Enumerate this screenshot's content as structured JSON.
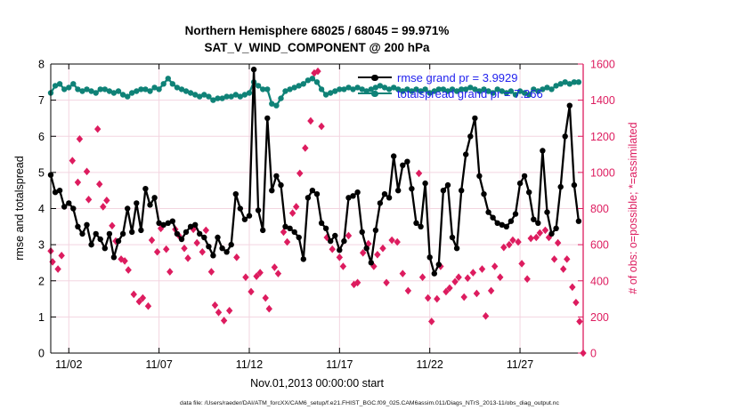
{
  "figure": {
    "title_line1": "Northern Hemisphere 68025 / 68045 = 99.971%",
    "title_line2": "SAT_V_WIND_COMPONENT @ 200 hPa",
    "footer": "data file: /Users/raeder/DAI/ATM_forcXX/CAM6_setup/f.e21.FHIST_BGC.f09_025.CAM6assim.011/Diags_NTrS_2013-11/obs_diag_output.nc"
  },
  "colors": {
    "rmse": "#000000",
    "totalspread": "#0f8277",
    "obs": "#dd1c5f",
    "legend_text": "#2222ee",
    "grid": "#f3d5e0"
  },
  "legend": {
    "items": [
      {
        "label": "rmse grand pr = 3.9929",
        "color": "#000000"
      },
      {
        "label": "totalspread grand pr = 7.266",
        "color": "#0f8277"
      }
    ]
  },
  "chart_data": {
    "type": "line",
    "title": "Northern Hemisphere 68025 / 68045 = 99.971%  |  SAT_V_WIND_COMPONENT @ 200 hPa",
    "grid": true,
    "x_axis": {
      "label": "Nov.01,2013 00:00:00 start",
      "tick_labels": [
        "11/02",
        "11/07",
        "11/12",
        "11/17",
        "11/22",
        "11/27"
      ],
      "tick_days": [
        2,
        7,
        12,
        17,
        22,
        27
      ],
      "range_days": [
        1,
        30.5
      ]
    },
    "y_left": {
      "label": "rmse and totalspread",
      "ticks": [
        0,
        1,
        2,
        3,
        4,
        5,
        6,
        7,
        8
      ],
      "range": [
        0,
        8
      ],
      "color": "#000000"
    },
    "y_right": {
      "label": "# of obs: o=possible; *=assimilated",
      "ticks": [
        0,
        200,
        400,
        600,
        800,
        1000,
        1200,
        1400,
        1600
      ],
      "range": [
        0,
        1600
      ],
      "color": "#dd1c5f"
    },
    "series": [
      {
        "name": "rmse",
        "type": "line",
        "axis": "left",
        "color": "#000000",
        "marker": "circle",
        "grand_mean": 3.9929,
        "x_start": 1.0,
        "x_step": 0.25,
        "values": [
          4.93,
          4.45,
          4.5,
          4.05,
          4.15,
          4.0,
          3.5,
          3.3,
          3.55,
          3.0,
          3.3,
          3.15,
          2.9,
          3.3,
          2.65,
          3.1,
          3.3,
          4.0,
          3.35,
          4.15,
          3.4,
          4.55,
          4.1,
          4.3,
          3.6,
          3.55,
          3.6,
          3.65,
          3.3,
          3.15,
          3.35,
          3.5,
          3.55,
          3.3,
          3.2,
          2.95,
          2.7,
          3.2,
          2.9,
          2.8,
          3.0,
          4.4,
          4.0,
          3.7,
          3.8,
          7.85,
          3.95,
          3.4,
          6.5,
          4.5,
          4.9,
          4.65,
          3.5,
          3.45,
          3.35,
          3.2,
          2.6,
          4.3,
          4.5,
          4.4,
          3.6,
          3.45,
          3.1,
          3.25,
          2.85,
          3.1,
          4.3,
          4.35,
          4.45,
          3.35,
          2.9,
          2.5,
          3.4,
          4.15,
          4.4,
          4.3,
          5.45,
          4.5,
          5.2,
          5.3,
          4.55,
          3.6,
          3.5,
          4.7,
          2.65,
          2.2,
          2.45,
          4.5,
          4.65,
          3.2,
          2.9,
          4.5,
          5.5,
          6.0,
          6.5,
          4.9,
          4.4,
          3.9,
          3.75,
          3.6,
          3.55,
          3.5,
          3.65,
          3.85,
          4.7,
          4.9,
          4.45,
          3.7,
          3.6,
          5.6,
          3.9,
          3.3,
          3.45,
          4.6,
          6.0,
          6.85,
          4.65,
          3.65
        ]
      },
      {
        "name": "totalspread",
        "type": "line",
        "axis": "left",
        "color": "#0f8277",
        "marker": "circle",
        "grand_mean": 7.266,
        "x_start": 1.0,
        "x_step": 0.25,
        "values": [
          7.2,
          7.4,
          7.45,
          7.3,
          7.35,
          7.45,
          7.3,
          7.25,
          7.3,
          7.25,
          7.2,
          7.3,
          7.3,
          7.25,
          7.2,
          7.25,
          7.15,
          7.1,
          7.2,
          7.25,
          7.3,
          7.3,
          7.25,
          7.35,
          7.3,
          7.45,
          7.6,
          7.45,
          7.35,
          7.3,
          7.25,
          7.2,
          7.15,
          7.1,
          7.15,
          7.1,
          7.0,
          7.05,
          7.05,
          7.1,
          7.1,
          7.15,
          7.1,
          7.15,
          7.2,
          7.5,
          7.4,
          7.3,
          7.3,
          6.9,
          6.85,
          7.05,
          7.25,
          7.3,
          7.35,
          7.4,
          7.45,
          7.55,
          7.6,
          7.5,
          7.3,
          7.15,
          7.2,
          7.25,
          7.3,
          7.3,
          7.35,
          7.3,
          7.35,
          7.3,
          7.25,
          7.3,
          7.35,
          7.4,
          7.35,
          7.3,
          7.35,
          7.3,
          7.25,
          7.3,
          7.25,
          7.3,
          7.25,
          7.3,
          7.2,
          7.25,
          7.3,
          7.3,
          7.25,
          7.3,
          7.25,
          7.3,
          7.3,
          7.35,
          7.3,
          7.25,
          7.3,
          7.25,
          7.2,
          7.3,
          7.25,
          7.2,
          7.25,
          7.15,
          7.25,
          7.2,
          7.15,
          7.3,
          7.25,
          7.3,
          7.35,
          7.3,
          7.4,
          7.45,
          7.5,
          7.45,
          7.5,
          7.5
        ]
      },
      {
        "name": "obs_count",
        "type": "scatter",
        "axis": "right",
        "color": "#dd1c5f",
        "marker": "diamond",
        "note": "o=possible and *=assimilated markers coincide (99.971% assimilated)",
        "points": [
          [
            1.0,
            565
          ],
          [
            1.1,
            505
          ],
          [
            1.4,
            465
          ],
          [
            1.6,
            540
          ],
          [
            2.2,
            1065
          ],
          [
            2.5,
            945
          ],
          [
            2.6,
            1185
          ],
          [
            3.0,
            1005
          ],
          [
            3.1,
            850
          ],
          [
            3.6,
            1240
          ],
          [
            3.7,
            935
          ],
          [
            3.9,
            810
          ],
          [
            4.1,
            845
          ],
          [
            4.4,
            705
          ],
          [
            4.6,
            620
          ],
          [
            4.9,
            520
          ],
          [
            5.1,
            510
          ],
          [
            5.3,
            460
          ],
          [
            5.6,
            325
          ],
          [
            5.9,
            285
          ],
          [
            6.1,
            305
          ],
          [
            6.4,
            260
          ],
          [
            6.6,
            625
          ],
          [
            6.9,
            560
          ],
          [
            7.1,
            690
          ],
          [
            7.4,
            575
          ],
          [
            7.6,
            450
          ],
          [
            7.9,
            685
          ],
          [
            8.1,
            650
          ],
          [
            8.4,
            580
          ],
          [
            8.6,
            525
          ],
          [
            8.9,
            685
          ],
          [
            9.1,
            610
          ],
          [
            9.4,
            560
          ],
          [
            9.6,
            680
          ],
          [
            9.9,
            450
          ],
          [
            10.1,
            265
          ],
          [
            10.3,
            225
          ],
          [
            10.6,
            180
          ],
          [
            10.9,
            235
          ],
          [
            11.3,
            530
          ],
          [
            11.8,
            420
          ],
          [
            12.1,
            340
          ],
          [
            12.4,
            425
          ],
          [
            12.6,
            445
          ],
          [
            12.9,
            305
          ],
          [
            13.1,
            245
          ],
          [
            13.4,
            475
          ],
          [
            13.6,
            440
          ],
          [
            13.9,
            670
          ],
          [
            14.1,
            615
          ],
          [
            14.4,
            775
          ],
          [
            14.6,
            810
          ],
          [
            14.8,
            995
          ],
          [
            15.1,
            1135
          ],
          [
            15.4,
            1285
          ],
          [
            15.6,
            1550
          ],
          [
            15.8,
            1560
          ],
          [
            16.0,
            1255
          ],
          [
            16.3,
            640
          ],
          [
            16.6,
            575
          ],
          [
            17.0,
            530
          ],
          [
            17.2,
            480
          ],
          [
            17.5,
            650
          ],
          [
            17.8,
            380
          ],
          [
            18.0,
            390
          ],
          [
            18.3,
            555
          ],
          [
            18.6,
            605
          ],
          [
            18.9,
            480
          ],
          [
            19.1,
            545
          ],
          [
            19.4,
            580
          ],
          [
            19.6,
            390
          ],
          [
            19.9,
            625
          ],
          [
            20.2,
            615
          ],
          [
            20.5,
            440
          ],
          [
            20.8,
            345
          ],
          [
            21.4,
            995
          ],
          [
            21.6,
            420
          ],
          [
            21.9,
            305
          ],
          [
            22.1,
            175
          ],
          [
            22.4,
            300
          ],
          [
            22.6,
            480
          ],
          [
            22.9,
            340
          ],
          [
            23.1,
            360
          ],
          [
            23.4,
            395
          ],
          [
            23.6,
            420
          ],
          [
            23.9,
            310
          ],
          [
            24.1,
            415
          ],
          [
            24.4,
            445
          ],
          [
            24.6,
            330
          ],
          [
            24.9,
            465
          ],
          [
            25.1,
            205
          ],
          [
            25.4,
            345
          ],
          [
            25.6,
            480
          ],
          [
            25.9,
            420
          ],
          [
            26.1,
            585
          ],
          [
            26.4,
            600
          ],
          [
            26.6,
            625
          ],
          [
            26.9,
            615
          ],
          [
            27.1,
            495
          ],
          [
            27.4,
            410
          ],
          [
            27.6,
            635
          ],
          [
            27.9,
            640
          ],
          [
            28.1,
            665
          ],
          [
            28.4,
            680
          ],
          [
            28.6,
            640
          ],
          [
            28.9,
            520
          ],
          [
            29.1,
            610
          ],
          [
            29.4,
            465
          ],
          [
            29.6,
            520
          ],
          [
            29.9,
            365
          ],
          [
            30.1,
            280
          ],
          [
            30.3,
            175
          ],
          [
            30.5,
            0
          ]
        ]
      }
    ]
  }
}
